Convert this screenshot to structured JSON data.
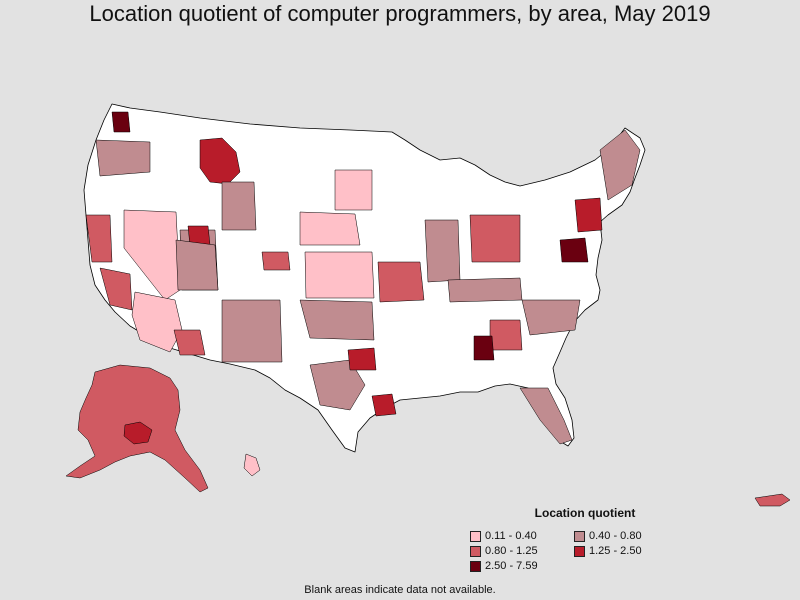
{
  "title": "Location quotient of computer programmers, by area, May 2019",
  "legend": {
    "title": "Location quotient",
    "items": [
      {
        "label": "0.11 - 0.40",
        "color": "#ffc0c8"
      },
      {
        "label": "0.40 - 0.80",
        "color": "#c08c90"
      },
      {
        "label": "0.80 - 1.25",
        "color": "#d05a62"
      },
      {
        "label": "1.25 - 2.50",
        "color": "#b81c2a"
      },
      {
        "label": "2.50 - 7.59",
        "color": "#6a0010"
      }
    ]
  },
  "note": "Blank areas indicate data not available.",
  "map": {
    "regions": [
      {
        "name": "alaska",
        "class": 2
      },
      {
        "name": "montana-west",
        "class": 3
      },
      {
        "name": "wyoming-west",
        "class": 1
      },
      {
        "name": "nevada",
        "class": 0
      },
      {
        "name": "kansas",
        "class": 0
      },
      {
        "name": "new-mexico",
        "class": 1
      },
      {
        "name": "texas-east",
        "class": 1
      },
      {
        "name": "florida",
        "class": 1
      },
      {
        "name": "puerto-rico",
        "class": 2
      },
      {
        "name": "hawaii",
        "class": 0
      }
    ]
  }
}
